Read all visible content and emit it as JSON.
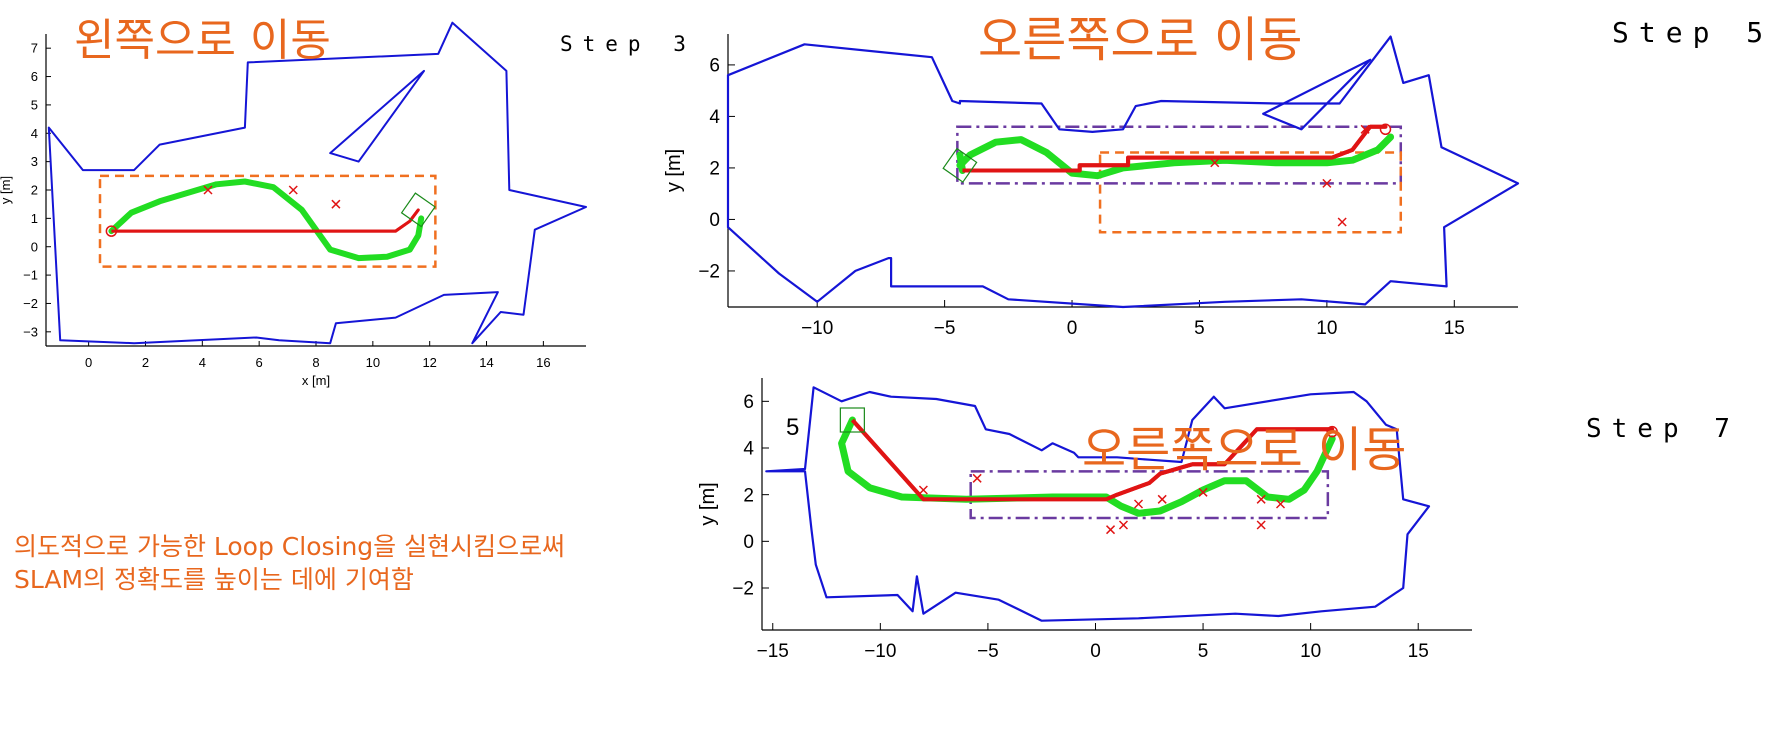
{
  "panels": [
    {
      "id": "step3",
      "caption": "왼쪽으로 이동",
      "step_label": "Step 3",
      "xlabel": "x [m]",
      "ylabel": "y [m]"
    },
    {
      "id": "step5",
      "caption": "오른쪽으로 이동",
      "step_label": "Step 5",
      "xlabel": "",
      "ylabel": "y [m]"
    },
    {
      "id": "step7",
      "caption": "오른쪽으로 이동",
      "step_label": "Step 7",
      "xlabel": "",
      "ylabel": "y [m]"
    }
  ],
  "description": {
    "line1": "의도적으로 가능한 Loop Closing을 실현시킴으로써",
    "line2": "SLAM의 정확도를 높이는 데에 기여함"
  },
  "stray_text": {
    "five": "5"
  },
  "colors": {
    "map_outline": "#1515d6",
    "estimated_path": "#e01414",
    "true_path": "#22dd22",
    "landmark": "#e01414",
    "region_orange": "#f07020",
    "region_purple": "#6a3aa0",
    "caption": "#e8671e"
  },
  "chart_data": [
    {
      "type": "line",
      "panel": "step3",
      "xlabel": "x [m]",
      "ylabel": "y [m]",
      "xlim": [
        -1.5,
        17.5
      ],
      "ylim": [
        -3.5,
        7.5
      ],
      "x_ticks": [
        0,
        2,
        4,
        6,
        8,
        10,
        12,
        14,
        16
      ],
      "y_ticks": [
        -3,
        -2,
        -1,
        0,
        1,
        2,
        3,
        4,
        5,
        6,
        7
      ],
      "series": [
        {
          "role": "map",
          "points": [
            [
              -1.4,
              4.2
            ],
            [
              -0.2,
              2.7
            ],
            [
              1.6,
              2.7
            ],
            [
              2.5,
              3.6
            ],
            [
              5.5,
              4.2
            ],
            [
              5.6,
              6.5
            ],
            [
              12.3,
              6.8
            ],
            [
              12.8,
              7.9
            ],
            [
              14.7,
              6.2
            ],
            [
              14.8,
              2.0
            ],
            [
              17.5,
              1.4
            ],
            [
              15.7,
              0.6
            ],
            [
              15.3,
              -2.4
            ],
            [
              14.5,
              -2.3
            ],
            [
              13.5,
              -3.4
            ],
            [
              14.4,
              -1.6
            ],
            [
              12.5,
              -1.7
            ],
            [
              10.8,
              -2.5
            ],
            [
              8.7,
              -2.7
            ],
            [
              8.5,
              -3.4
            ],
            [
              6.7,
              -3.3
            ],
            [
              5.9,
              -3.2
            ],
            [
              1.6,
              -3.4
            ],
            [
              -1.0,
              -3.3
            ],
            [
              -1.4,
              4.2
            ]
          ]
        },
        {
          "role": "map",
          "points": [
            [
              8.5,
              3.3
            ],
            [
              11.8,
              6.2
            ],
            [
              9.5,
              3.0
            ],
            [
              8.5,
              3.3
            ]
          ]
        },
        {
          "role": "estimated",
          "points": [
            [
              0.8,
              0.55
            ],
            [
              10.8,
              0.55
            ],
            [
              11.3,
              0.9
            ],
            [
              11.6,
              1.3
            ]
          ]
        },
        {
          "role": "true",
          "points": [
            [
              0.8,
              0.55
            ],
            [
              1.5,
              1.2
            ],
            [
              2.5,
              1.6
            ],
            [
              3.5,
              1.9
            ],
            [
              4.5,
              2.2
            ],
            [
              5.5,
              2.3
            ],
            [
              6.5,
              2.1
            ],
            [
              7.5,
              1.3
            ],
            [
              8.5,
              -0.1
            ],
            [
              9.5,
              -0.4
            ],
            [
              10.5,
              -0.35
            ],
            [
              11.3,
              -0.1
            ],
            [
              11.6,
              0.4
            ],
            [
              11.7,
              1.0
            ]
          ]
        }
      ],
      "landmarks": [
        [
          4.2,
          2.0
        ],
        [
          7.2,
          2.0
        ],
        [
          8.7,
          1.5
        ]
      ],
      "start": [
        0.8,
        0.55
      ],
      "current": [
        11.6,
        1.3
      ],
      "regions": [
        {
          "style": "orange-dashed",
          "x": [
            0.4,
            12.2
          ],
          "y": [
            -0.7,
            2.5
          ]
        }
      ]
    },
    {
      "type": "line",
      "panel": "step5",
      "xlabel": "",
      "ylabel": "y [m]",
      "xlim": [
        -13.5,
        17.5
      ],
      "ylim": [
        -3.4,
        7.2
      ],
      "x_ticks": [
        -10,
        -5,
        0,
        5,
        10,
        15
      ],
      "y_ticks": [
        -2,
        0,
        2,
        4,
        6
      ],
      "series": [
        {
          "role": "map",
          "points": [
            [
              -13.5,
              5.6
            ],
            [
              -10.5,
              6.8
            ],
            [
              -5.5,
              6.3
            ],
            [
              -4.7,
              4.6
            ],
            [
              -4.4,
              4.5
            ],
            [
              -4.4,
              4.6
            ],
            [
              -1.2,
              4.5
            ],
            [
              -0.5,
              3.5
            ],
            [
              0.8,
              3.4
            ],
            [
              2.0,
              3.5
            ],
            [
              2.5,
              4.4
            ],
            [
              3.5,
              4.6
            ],
            [
              8.0,
              4.5
            ],
            [
              10.5,
              4.5
            ],
            [
              12.5,
              7.1
            ],
            [
              13.0,
              5.3
            ],
            [
              14.0,
              5.6
            ],
            [
              14.5,
              2.8
            ],
            [
              17.5,
              1.4
            ],
            [
              14.6,
              -0.3
            ],
            [
              14.7,
              -2.6
            ],
            [
              12.5,
              -2.4
            ],
            [
              11.5,
              -3.3
            ],
            [
              9.0,
              -3.1
            ],
            [
              6.0,
              -3.2
            ],
            [
              2.0,
              -3.4
            ],
            [
              -2.5,
              -3.1
            ],
            [
              -3.5,
              -2.6
            ],
            [
              -7.1,
              -2.6
            ],
            [
              -7.1,
              -1.5
            ],
            [
              -7.2,
              -1.5
            ],
            [
              -8.5,
              -2.0
            ],
            [
              -10.0,
              -3.2
            ],
            [
              -11.5,
              -2.1
            ],
            [
              -13.5,
              -0.3
            ],
            [
              -13.5,
              5.6
            ]
          ]
        },
        {
          "role": "map",
          "points": [
            [
              7.5,
              4.1
            ],
            [
              11.7,
              6.2
            ],
            [
              9.0,
              3.5
            ],
            [
              7.5,
              4.1
            ]
          ]
        },
        {
          "role": "estimated",
          "points": [
            [
              -4.3,
              1.9
            ],
            [
              -4.2,
              1.9
            ],
            [
              0.3,
              1.9
            ],
            [
              0.3,
              2.1
            ],
            [
              2.2,
              2.1
            ],
            [
              2.2,
              2.4
            ],
            [
              10.2,
              2.4
            ],
            [
              11.0,
              2.7
            ],
            [
              11.7,
              3.6
            ],
            [
              12.3,
              3.6
            ]
          ]
        },
        {
          "role": "true",
          "points": [
            [
              -4.4,
              2.1
            ],
            [
              -4.0,
              2.5
            ],
            [
              -3.0,
              3.0
            ],
            [
              -2.0,
              3.1
            ],
            [
              -1.0,
              2.6
            ],
            [
              0.0,
              1.8
            ],
            [
              1.0,
              1.7
            ],
            [
              2.0,
              2.0
            ],
            [
              4.0,
              2.2
            ],
            [
              6.0,
              2.3
            ],
            [
              8.0,
              2.2
            ],
            [
              10.0,
              2.2
            ],
            [
              11.0,
              2.3
            ],
            [
              12.0,
              2.7
            ],
            [
              12.5,
              3.2
            ]
          ]
        },
        {
          "role": "true",
          "points": [
            [
              -4.3,
              1.9
            ],
            [
              -4.4,
              2.5
            ]
          ]
        }
      ],
      "landmarks": [
        [
          5.6,
          2.2
        ],
        [
          10.0,
          1.4
        ],
        [
          10.6,
          -0.1
        ],
        [
          11.5,
          3.5
        ]
      ],
      "start": [
        12.3,
        3.5
      ],
      "current": [
        -4.4,
        2.1
      ],
      "regions": [
        {
          "style": "purple-dashdot",
          "x": [
            -4.5,
            12.9
          ],
          "y": [
            1.4,
            3.6
          ]
        },
        {
          "style": "orange-dashed",
          "x": [
            1.1,
            12.9
          ],
          "y": [
            -0.5,
            2.6
          ]
        }
      ]
    },
    {
      "type": "line",
      "panel": "step7",
      "xlabel": "",
      "ylabel": "y [m]",
      "xlim": [
        -15.5,
        17.5
      ],
      "ylim": [
        -3.8,
        7.0
      ],
      "x_ticks": [
        -15,
        -10,
        -5,
        0,
        5,
        10,
        15
      ],
      "y_ticks": [
        -2,
        0,
        2,
        4,
        6
      ],
      "series": [
        {
          "role": "map",
          "points": [
            [
              -15.3,
              3.0
            ],
            [
              -13.5,
              3.1
            ],
            [
              -13.1,
              6.6
            ],
            [
              -11.8,
              6.0
            ],
            [
              -10.5,
              6.4
            ],
            [
              -9.5,
              6.2
            ],
            [
              -7.4,
              6.1
            ],
            [
              -5.6,
              5.8
            ],
            [
              -5.1,
              4.8
            ],
            [
              -4.0,
              4.6
            ],
            [
              -2.5,
              3.9
            ],
            [
              -2.0,
              4.2
            ],
            [
              -1.0,
              3.8
            ],
            [
              -0.8,
              3.6
            ],
            [
              1.0,
              3.6
            ],
            [
              2.5,
              3.5
            ],
            [
              4.0,
              3.4
            ],
            [
              4.5,
              5.2
            ],
            [
              5.5,
              6.2
            ],
            [
              6.0,
              5.7
            ],
            [
              10.0,
              6.3
            ],
            [
              12.0,
              6.4
            ],
            [
              12.6,
              6.0
            ],
            [
              13.5,
              5.0
            ],
            [
              14.0,
              4.8
            ],
            [
              14.3,
              1.8
            ],
            [
              15.5,
              1.5
            ],
            [
              14.5,
              0.3
            ],
            [
              14.3,
              -2.0
            ],
            [
              13.0,
              -2.8
            ],
            [
              10.5,
              -3.0
            ],
            [
              8.5,
              -3.2
            ],
            [
              6.5,
              -3.1
            ],
            [
              2.0,
              -3.3
            ],
            [
              -2.5,
              -3.4
            ],
            [
              -4.5,
              -2.5
            ],
            [
              -6.5,
              -2.2
            ],
            [
              -8.0,
              -3.1
            ],
            [
              -8.3,
              -1.5
            ],
            [
              -8.5,
              -3.0
            ],
            [
              -9.2,
              -2.3
            ],
            [
              -12.5,
              -2.4
            ],
            [
              -13.0,
              -1.0
            ],
            [
              -13.2,
              0.5
            ],
            [
              -13.5,
              3.0
            ],
            [
              -15.3,
              3.0
            ]
          ]
        },
        {
          "role": "estimated",
          "points": [
            [
              -11.3,
              5.2
            ],
            [
              -8.0,
              1.8
            ],
            [
              0.5,
              1.8
            ],
            [
              1.0,
              2.0
            ],
            [
              2.5,
              2.5
            ],
            [
              3.0,
              2.9
            ],
            [
              4.5,
              3.3
            ],
            [
              6.0,
              3.3
            ],
            [
              7.0,
              4.3
            ],
            [
              7.5,
              4.8
            ],
            [
              11.0,
              4.8
            ]
          ]
        },
        {
          "role": "true",
          "points": [
            [
              -11.3,
              5.2
            ],
            [
              -11.8,
              4.2
            ],
            [
              -11.5,
              3.0
            ],
            [
              -10.5,
              2.3
            ],
            [
              -9.0,
              1.9
            ],
            [
              -6.0,
              1.8
            ],
            [
              -2.0,
              1.9
            ],
            [
              0.5,
              1.9
            ],
            [
              1.2,
              1.5
            ],
            [
              2.0,
              1.2
            ],
            [
              3.0,
              1.3
            ],
            [
              4.0,
              1.7
            ],
            [
              5.0,
              2.2
            ],
            [
              6.0,
              2.6
            ],
            [
              7.0,
              2.6
            ],
            [
              8.0,
              1.9
            ],
            [
              9.0,
              1.8
            ],
            [
              9.7,
              2.2
            ],
            [
              10.3,
              3.0
            ],
            [
              11.0,
              4.4
            ]
          ]
        }
      ],
      "landmarks": [
        [
          -8.0,
          2.2
        ],
        [
          -5.5,
          2.7
        ],
        [
          0.7,
          0.5
        ],
        [
          1.3,
          0.7
        ],
        [
          2.0,
          1.6
        ],
        [
          3.1,
          1.8
        ],
        [
          5.0,
          2.1
        ],
        [
          7.7,
          1.8
        ],
        [
          7.7,
          0.7
        ],
        [
          8.6,
          1.6
        ]
      ],
      "start": [
        11.0,
        4.7
      ],
      "current": [
        -11.3,
        5.2
      ],
      "regions": [
        {
          "style": "purple-dashdot",
          "x": [
            -5.8,
            10.8
          ],
          "y": [
            1.0,
            3.0
          ]
        }
      ]
    }
  ]
}
